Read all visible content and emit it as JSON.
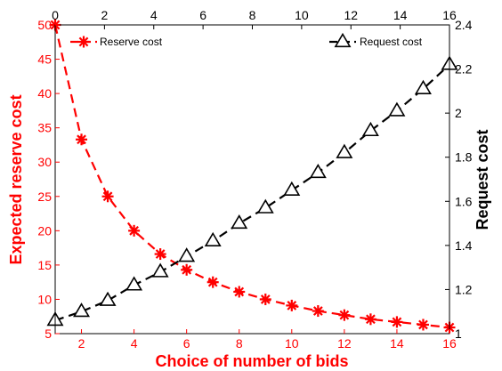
{
  "chart_data": {
    "type": "line",
    "x": [
      1,
      2,
      3,
      4,
      5,
      6,
      7,
      8,
      9,
      10,
      11,
      12,
      13,
      14,
      15,
      16
    ],
    "series": [
      {
        "name": "Reserve cost",
        "axis": "left",
        "color": "#ff0000",
        "marker": "asterisk",
        "line_style": "dashed",
        "values": [
          50.0,
          33.3,
          25.0,
          20.0,
          16.6,
          14.3,
          12.5,
          11.1,
          10.0,
          9.1,
          8.3,
          7.7,
          7.1,
          6.7,
          6.3,
          5.9
        ]
      },
      {
        "name": "Request cost",
        "axis": "right",
        "color": "#000000",
        "marker": "triangle-open",
        "line_style": "dashed",
        "values": [
          1.06,
          1.1,
          1.15,
          1.22,
          1.28,
          1.35,
          1.42,
          1.5,
          1.57,
          1.65,
          1.73,
          1.82,
          1.92,
          2.01,
          2.11,
          2.22
        ]
      }
    ],
    "xlabel": "Choice of number of bids",
    "ylabel": "Expected reserve cost",
    "y2label": "Request cost",
    "xlim": [
      1,
      16
    ],
    "ylim": [
      5,
      50
    ],
    "y2lim": [
      1,
      2.4
    ],
    "x2lim": [
      0,
      16
    ],
    "x_ticks": [
      "2",
      "4",
      "6",
      "8",
      "10",
      "12",
      "14",
      "16"
    ],
    "x2_ticks": [
      "0",
      "2",
      "4",
      "6",
      "8",
      "10",
      "12",
      "14",
      "16"
    ],
    "y_ticks": [
      "5",
      "10",
      "15",
      "20",
      "25",
      "30",
      "35",
      "40",
      "45",
      "50"
    ],
    "y2_ticks": [
      "1",
      "1.2",
      "1.4",
      "1.6",
      "1.8",
      "2",
      "2.2",
      "2.4"
    ],
    "grid": false,
    "legend": [
      {
        "label": "Reserve cost",
        "placement": "top-left"
      },
      {
        "label": "Request cost",
        "placement": "top-right"
      }
    ],
    "colors": {
      "left_axis": "#ff0000",
      "right_axis": "#000000"
    }
  }
}
